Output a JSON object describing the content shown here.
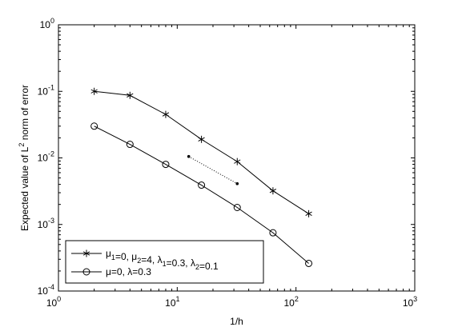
{
  "chart_data": {
    "type": "line",
    "xscale": "log",
    "yscale": "log",
    "xlim": [
      1,
      1000
    ],
    "ylim": [
      0.0001,
      1
    ],
    "x_ticks": [
      {
        "value": 1,
        "base": "10",
        "exp": "0"
      },
      {
        "value": 10,
        "base": "10",
        "exp": "1"
      },
      {
        "value": 100,
        "base": "10",
        "exp": "2"
      },
      {
        "value": 1000,
        "base": "10",
        "exp": "3"
      }
    ],
    "y_ticks": [
      {
        "value": 0.0001,
        "base": "10",
        "exp": "-4"
      },
      {
        "value": 0.001,
        "base": "10",
        "exp": "-3"
      },
      {
        "value": 0.01,
        "base": "10",
        "exp": "-2"
      },
      {
        "value": 0.1,
        "base": "10",
        "exp": "-1"
      },
      {
        "value": 1,
        "base": "10",
        "exp": "0"
      }
    ],
    "xlabel": "1/h",
    "ylabel": {
      "prefix": "Expected value of L",
      "sup": "2",
      "suffix": " norm of error"
    },
    "grid": false,
    "legend_position": "bottom-left",
    "series": [
      {
        "name": "μ1=0, μ2=4, λ1=0.3, λ2=0.1",
        "legend_parts": [
          {
            "t": "μ",
            "sub": "1"
          },
          {
            "t": "=0, μ",
            "sub": "2"
          },
          {
            "t": "=4, λ",
            "sub": "1"
          },
          {
            "t": "=0.3, λ",
            "sub": "2"
          },
          {
            "t": "=0.1",
            "sub": ""
          }
        ],
        "marker": "asterisk",
        "color": "#000000",
        "x": [
          2,
          4,
          8,
          16,
          32,
          64,
          128
        ],
        "y": [
          0.1,
          0.087,
          0.045,
          0.019,
          0.0088,
          0.0032,
          0.00145
        ]
      },
      {
        "name": "μ=0, λ=0.3",
        "legend_parts": [
          {
            "t": "μ=0, λ=0.3",
            "sub": ""
          }
        ],
        "marker": "circle",
        "color": "#000000",
        "x": [
          2,
          4,
          8,
          16,
          32,
          64,
          128
        ],
        "y": [
          0.03,
          0.016,
          0.008,
          0.0039,
          0.0018,
          0.00075,
          0.00026
        ]
      }
    ],
    "reference_line": {
      "style": "dotted",
      "marker": "dot",
      "x": [
        12.5,
        32
      ],
      "y": [
        0.0105,
        0.0041
      ]
    }
  }
}
